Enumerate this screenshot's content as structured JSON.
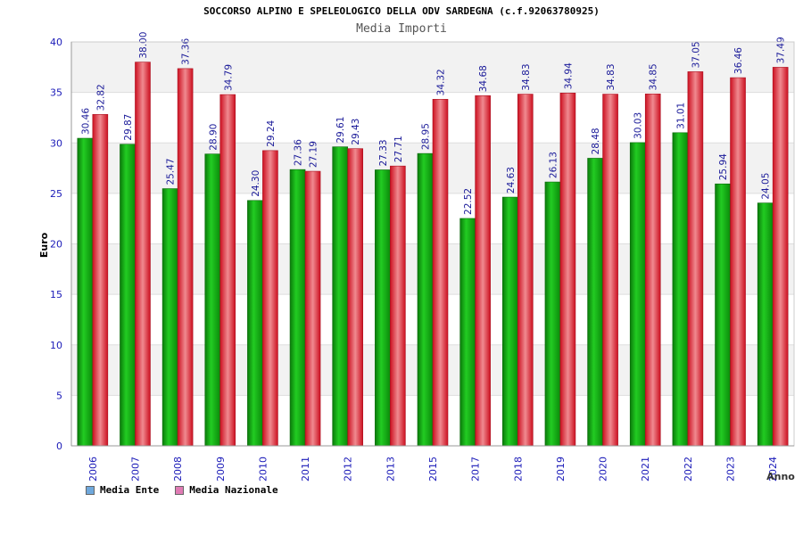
{
  "title": "SOCCORSO ALPINO E SPELEOLOGICO DELLA ODV SARDEGNA (c.f.92063780925)",
  "subtitle": "Media Importi",
  "chart_data": {
    "type": "bar",
    "title": "SOCCORSO ALPINO E SPELEOLOGICO DELLA ODV SARDEGNA (c.f.92063780925)",
    "subtitle": "Media Importi",
    "xlabel": "Anno",
    "ylabel": "Euro",
    "ylim": [
      0,
      40
    ],
    "yticks": [
      0,
      5,
      10,
      15,
      20,
      25,
      30,
      35,
      40
    ],
    "grid": true,
    "legend_position": "bottom-left",
    "categories": [
      "2006",
      "2007",
      "2008",
      "2009",
      "2010",
      "2011",
      "2012",
      "2013",
      "2015",
      "2017",
      "2018",
      "2019",
      "2020",
      "2021",
      "2022",
      "2023",
      "2024"
    ],
    "series": [
      {
        "name": "Media Ente",
        "color": "#22bb22",
        "legend_color": "#6fa8dc",
        "values": [
          30.46,
          29.87,
          25.47,
          28.9,
          24.3,
          27.36,
          29.61,
          27.33,
          28.95,
          22.52,
          24.63,
          26.13,
          28.48,
          30.03,
          31.01,
          25.94,
          24.05
        ],
        "labels": [
          "30.46",
          "29.87",
          "25.47",
          "28.90",
          "24.30",
          "27.36",
          "29.61",
          "27.33",
          "28.95",
          "22.52",
          "24.63",
          "26.13",
          "28.48",
          "30.03",
          "31.01",
          "25.94",
          "24.05"
        ]
      },
      {
        "name": "Media Nazionale",
        "color": "#ee2233",
        "legend_color": "#e07bb4",
        "values": [
          32.82,
          38.0,
          37.36,
          34.79,
          29.24,
          27.19,
          29.43,
          27.71,
          34.32,
          34.68,
          34.83,
          34.94,
          34.83,
          34.85,
          37.05,
          36.46,
          37.49
        ],
        "labels": [
          "32.82",
          "38.00",
          "37.36",
          "34.79",
          "29.24",
          "27.19",
          "29.43",
          "27.71",
          "34.32",
          "34.68",
          "34.83",
          "34.94",
          "34.83",
          "34.85",
          "37.05",
          "36.46",
          "37.49"
        ]
      }
    ]
  }
}
